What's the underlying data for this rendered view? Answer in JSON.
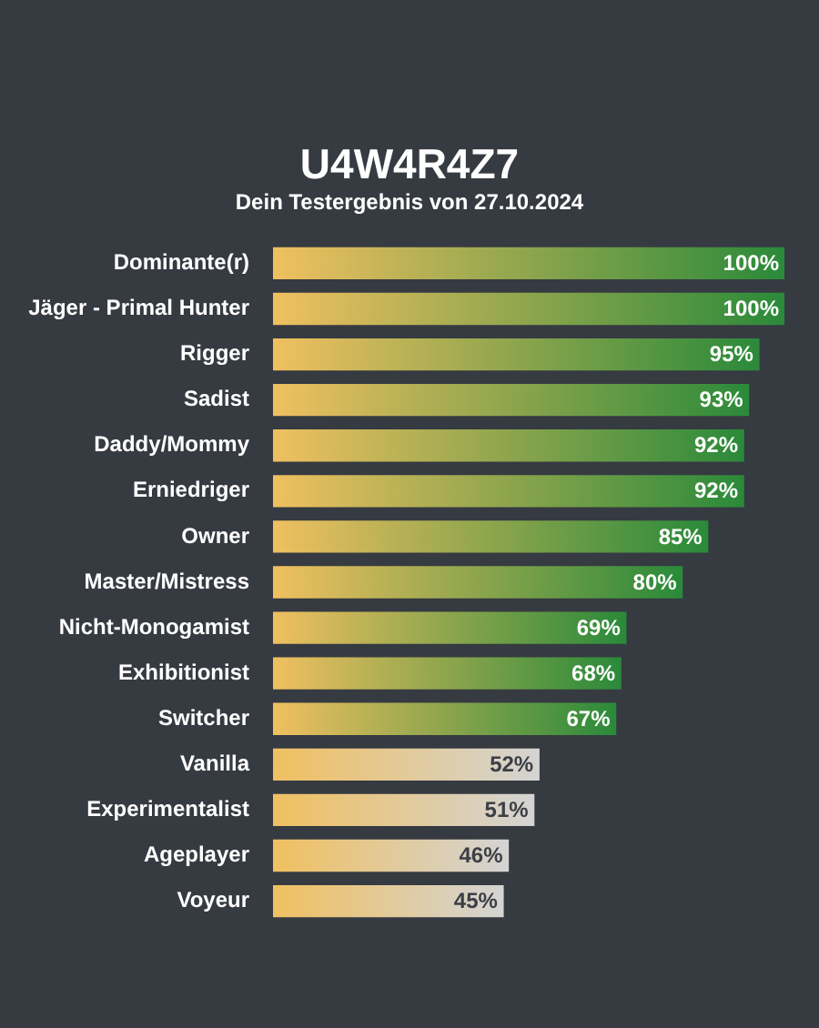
{
  "chart_data": {
    "type": "bar",
    "orientation": "horizontal",
    "title": "U4W4R4Z7",
    "subtitle": "Dein Testergebnis von 27.10.2024",
    "categories": [
      "Dominante(r)",
      "Jäger - Primal Hunter",
      "Rigger",
      "Sadist",
      "Daddy/Mommy",
      "Erniedriger",
      "Owner",
      "Master/Mistress",
      "Nicht-Monogamist",
      "Exhibitionist",
      "Switcher",
      "Vanilla",
      "Experimentalist",
      "Ageplayer",
      "Voyeur"
    ],
    "values": [
      100,
      100,
      95,
      93,
      92,
      92,
      85,
      80,
      69,
      68,
      67,
      52,
      51,
      46,
      45
    ],
    "value_labels": [
      "100%",
      "100%",
      "95%",
      "93%",
      "92%",
      "92%",
      "85%",
      "80%",
      "69%",
      "68%",
      "67%",
      "52%",
      "51%",
      "46%",
      "45%"
    ],
    "color": "#f0c060",
    "colors": [
      "#2a8a3a",
      "#2a8a3a",
      "#2a8a3a",
      "#2a8a3a",
      "#2a8a3a",
      "#2a8a3a",
      "#2a8a3a",
      "#2a8a3a",
      "#2a8a3a",
      "#2a8a3a",
      "#2a8a3a",
      "#d4d4d4",
      "#d4d4d4",
      "#d4d4d4",
      "#d4d4d4"
    ],
    "xlim": [
      0,
      100
    ],
    "tick_labels": "y"
  }
}
